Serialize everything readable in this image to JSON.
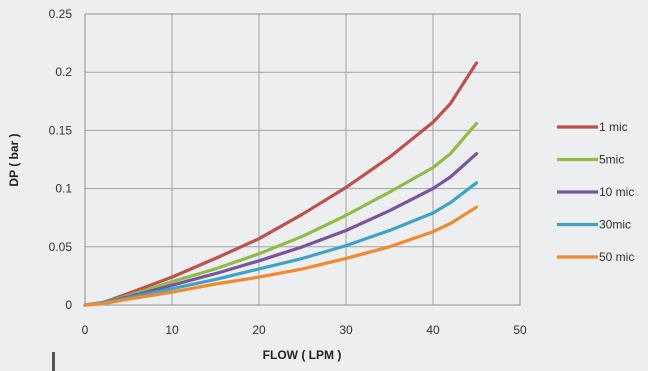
{
  "chart_data": {
    "type": "line",
    "title": "",
    "xlabel": "FLOW ( LPM )",
    "ylabel": "DP ( bar )",
    "xlim": [
      0,
      50
    ],
    "ylim": [
      0,
      0.25
    ],
    "x_ticks": [
      "0",
      "10",
      "20",
      "30",
      "40",
      "50"
    ],
    "y_ticks": [
      "0",
      "0.05",
      "0.1",
      "0.15",
      "0.2",
      "0.25"
    ],
    "grid": true,
    "legend_position": "right",
    "series": [
      {
        "name": "1 mic",
        "color": "#c0504d",
        "x": [
          0,
          2,
          5,
          10,
          15,
          20,
          25,
          30,
          35,
          40,
          42,
          45
        ],
        "y": [
          0,
          0.002,
          0.01,
          0.024,
          0.04,
          0.057,
          0.078,
          0.101,
          0.127,
          0.157,
          0.173,
          0.208
        ]
      },
      {
        "name": "5mic",
        "color": "#8fbc45",
        "x": [
          0,
          2,
          5,
          10,
          15,
          20,
          25,
          30,
          35,
          40,
          42,
          45
        ],
        "y": [
          0,
          0.002,
          0.008,
          0.02,
          0.031,
          0.044,
          0.059,
          0.077,
          0.097,
          0.118,
          0.13,
          0.156
        ]
      },
      {
        "name": "10 mic",
        "color": "#7a54a3",
        "x": [
          0,
          2,
          5,
          10,
          15,
          20,
          25,
          30,
          35,
          40,
          42,
          45
        ],
        "y": [
          0,
          0.002,
          0.007,
          0.017,
          0.027,
          0.038,
          0.05,
          0.064,
          0.081,
          0.1,
          0.11,
          0.13
        ]
      },
      {
        "name": "30mic",
        "color": "#3fa3c6",
        "x": [
          0,
          2,
          5,
          10,
          15,
          20,
          25,
          30,
          35,
          40,
          42,
          45
        ],
        "y": [
          0,
          0.002,
          0.006,
          0.014,
          0.022,
          0.031,
          0.04,
          0.051,
          0.064,
          0.079,
          0.088,
          0.105
        ]
      },
      {
        "name": "50 mic",
        "color": "#f08a2e",
        "x": [
          0,
          2,
          5,
          10,
          15,
          20,
          25,
          30,
          35,
          40,
          42,
          45
        ],
        "y": [
          0,
          0.001,
          0.005,
          0.011,
          0.018,
          0.024,
          0.031,
          0.04,
          0.05,
          0.063,
          0.07,
          0.084
        ]
      }
    ]
  }
}
